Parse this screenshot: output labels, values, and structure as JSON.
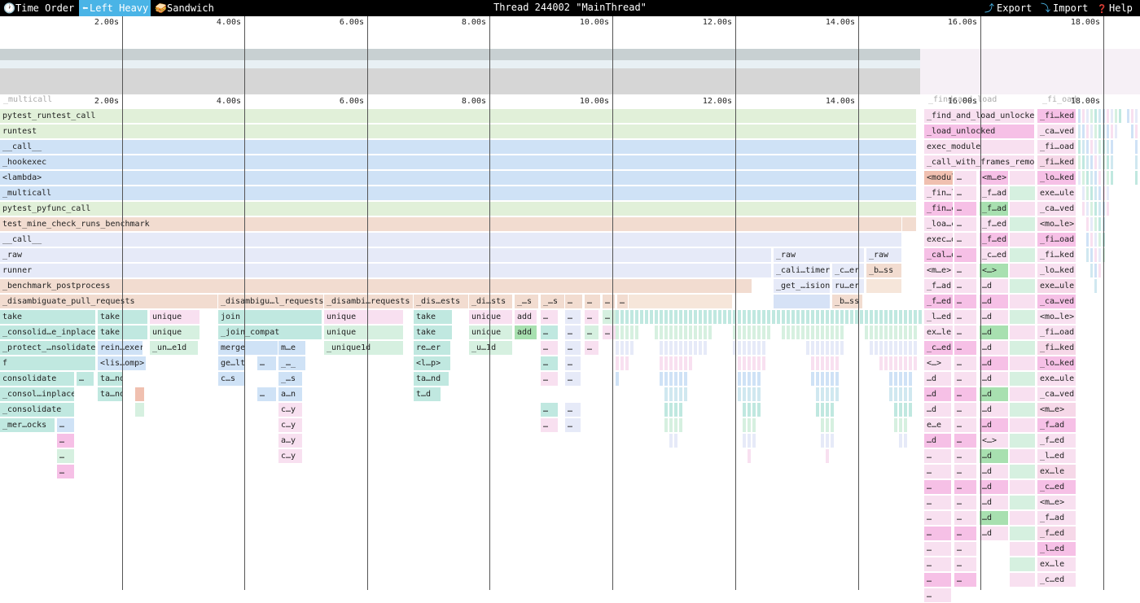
{
  "toolbar": {
    "view_modes": [
      {
        "label": "Time Order",
        "icon": "clock-icon",
        "glyph": "🕐",
        "active": false
      },
      {
        "label": "Left Heavy",
        "icon": "left-heavy-icon",
        "glyph": "⬅",
        "active": true
      },
      {
        "label": "Sandwich",
        "icon": "sandwich-icon",
        "glyph": "🥪",
        "active": false
      }
    ],
    "title": "Thread 244002 \"MainThread\"",
    "actions": [
      {
        "label": "Export",
        "icon": "export-icon",
        "glyph": "⤴"
      },
      {
        "label": "Import",
        "icon": "import-icon",
        "glyph": "⤵"
      },
      {
        "label": "Help",
        "icon": "help-icon",
        "glyph": "❓"
      }
    ]
  },
  "ruler": {
    "ticks": [
      "2.00s",
      "4.00s",
      "6.00s",
      "8.00s",
      "10.00s",
      "12.00s",
      "14.00s",
      "16.00s",
      "18.00s"
    ]
  },
  "minimap": {
    "ghost_labels": [
      "_multicall",
      "_find_and_load",
      "_fi_oad"
    ]
  },
  "colors": {
    "green": "#e1f0d9",
    "blue": "#cfe2f6",
    "peach": "#f2dcd0",
    "lavender": "#e6eaf8",
    "teal": "#c0e8e0",
    "pink": "#f6c0e6",
    "lightpink": "#f8e0f0",
    "mint": "#d6f0e0",
    "salmon": "#f0c0b0"
  },
  "flame": {
    "main_stack": [
      {
        "label": "pytest_runtest_call",
        "color": "green"
      },
      {
        "label": "runtest",
        "color": "green"
      },
      {
        "label": "__call__",
        "color": "blue"
      },
      {
        "label": "_hookexec",
        "color": "blue"
      },
      {
        "label": "<lambda>",
        "color": "blue"
      },
      {
        "label": "_multicall",
        "color": "blue"
      },
      {
        "label": "pytest_pyfunc_call",
        "color": "green"
      },
      {
        "label": "test_mine_check_runs_benchmark",
        "color": "peach"
      },
      {
        "label": "__call__",
        "color": "lavender"
      },
      {
        "label": "_raw",
        "color": "lavender"
      },
      {
        "label": "runner",
        "color": "lavender"
      },
      {
        "label": "_benchmark_postprocess",
        "color": "peach"
      },
      {
        "label": "_disambiguate_pull_requests",
        "color": "peach"
      }
    ],
    "right_stack_a": [
      "_find_and_load_unlocked",
      "_load_unlocked",
      "exec_module",
      "_call_with_frames_removed",
      "<module>",
      "_fin…load",
      "_fin…cked",
      "_loa…cked",
      "exec…dule",
      "_cal…oved",
      "<m…e>",
      "_f…ad",
      "_f…ed",
      "_l…ed",
      "ex…le",
      "_c…ed",
      "<…>",
      "…d",
      "…d",
      "…d",
      "e…e",
      "…d",
      "…",
      "…",
      "…",
      "…",
      "…",
      "…",
      "…",
      "…",
      "…",
      "…"
    ],
    "right_stack_b": [
      "_fi…ked",
      "_ca…ved",
      "_fi…oad",
      "_fi…ked",
      "_lo…ked",
      "exe…ule",
      "_ca…ved",
      "<mo…le>",
      "_fi…oad",
      "_fi…ked",
      "_lo…ked",
      "exe…ule",
      "_ca…ved",
      "<mo…le>",
      "_fi…oad",
      "_fi…ked",
      "_lo…ked",
      "exe…ule",
      "_ca…ved",
      "<m…e>",
      "_f…ad",
      "_f…ed",
      "_l…ed",
      "ex…le",
      "_c…ed",
      "<m…e>",
      "_f…ad",
      "_f…ed",
      "_l…ed",
      "ex…le",
      "_c…ed"
    ],
    "right_stack_c": [
      "<m…e>",
      "_f…ad",
      "_f…ad",
      "_f…ed",
      "_f…ed",
      "_c…ed",
      "<…>",
      "…d",
      "…d",
      "…d",
      "…d",
      "…d",
      "…d",
      "…d",
      "…d",
      "…d",
      "…d",
      "<…>",
      "…d",
      "…d",
      "…d",
      "…d",
      "…d",
      "…d"
    ],
    "mid_frames": {
      "raw_a": "_raw",
      "raw_b": "_raw",
      "cali_timer": "_cali…timer",
      "c_er": "_c…er",
      "b_ss": "_b…ss",
      "get_ision": "_get_…ision",
      "ru_er": "ru…er",
      "b_ss2": "_b…ss"
    },
    "level12": [
      {
        "label": "_disambigu…l_requests"
      },
      {
        "label": "_disambi…requests"
      },
      {
        "label": "_dis…ests"
      },
      {
        "label": "_di…sts"
      },
      {
        "label": "_…s"
      },
      {
        "label": "_…s"
      },
      {
        "label": "…"
      },
      {
        "label": "…"
      },
      {
        "label": "…"
      },
      {
        "label": "…"
      }
    ],
    "col_take": [
      "take",
      "_consolid…e_inplace",
      "_protect_…nsolidate",
      "f",
      "consolidate",
      "_consol…inplace",
      "_consolidate",
      "_mer…ocks",
      "…",
      "…",
      "…"
    ],
    "col_take2": [
      "take",
      "take",
      "rein…exer",
      "<lis…omp>",
      "ta…nd",
      "ta…nd"
    ],
    "col_unique": [
      "unique",
      "unique",
      "_un…e1d"
    ],
    "col_join": [
      "join",
      "_join_compat",
      "merge",
      "ge…lt",
      "c…s"
    ],
    "col_me": [
      "m…e",
      "_…_",
      "_…s",
      "a…n",
      "c…y",
      "c…y",
      "a…y",
      "c…y"
    ],
    "col_unique2": [
      "unique",
      "unique",
      "_unique1d"
    ],
    "col_take3": [
      "take",
      "take",
      "re…er",
      "<l…p>",
      "ta…nd",
      "t…d"
    ],
    "col_unique3": [
      "unique",
      "unique",
      "_u…1d"
    ],
    "col_add": [
      "add",
      "add"
    ],
    "misc_dots": [
      "…",
      "…",
      "…",
      "…",
      "…"
    ]
  }
}
